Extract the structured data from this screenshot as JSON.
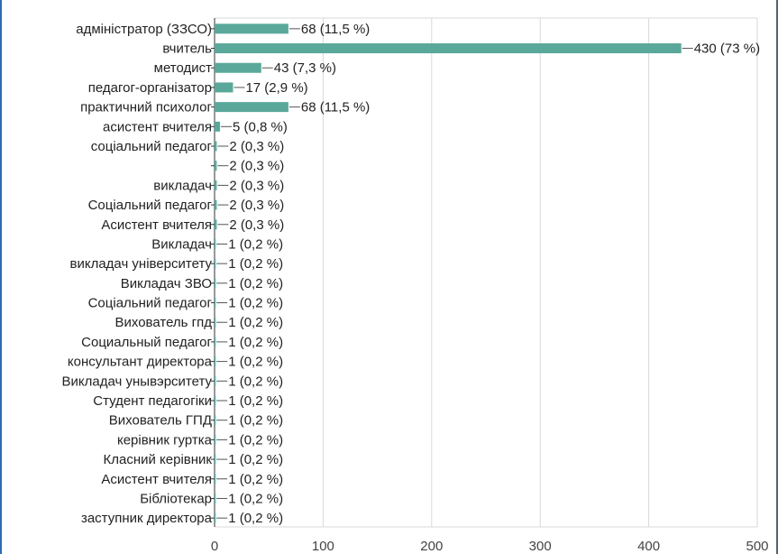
{
  "title": "",
  "chart_data": {
    "type": "bar",
    "orientation": "horizontal",
    "title": "",
    "xlabel": "",
    "ylabel": "",
    "xlim": [
      0,
      500
    ],
    "xticks": [
      0,
      100,
      200,
      300,
      400,
      500
    ],
    "grid": true,
    "bar_color": "#5aa89a",
    "categories": [
      "адміністратор (ЗЗСО)",
      "вчитель",
      "методист",
      "педагог-організатор",
      "практичний психолог",
      "асистент вчителя",
      "соціальний педагог",
      "",
      "викладач",
      "Соціальний педагог",
      "Асистент вчителя",
      "Викладач",
      "викладач університету",
      "Викладач ЗВО",
      "Соціальний педагог",
      "Вихователь гпд",
      "Социальный педагог",
      "консультант директора",
      "Викладач унывэрситету",
      "Студент педагогіки",
      "Вихователь ГПД",
      "керівник гуртка",
      "Класний керівник",
      "Асистент вчителя",
      "Бібліотекар",
      "заступник директора"
    ],
    "values": [
      68,
      430,
      43,
      17,
      68,
      5,
      2,
      2,
      2,
      2,
      2,
      1,
      1,
      1,
      1,
      1,
      1,
      1,
      1,
      1,
      1,
      1,
      1,
      1,
      1,
      1
    ],
    "value_labels": [
      "68 (11,5 %)",
      "430 (73 %)",
      "43 (7,3 %)",
      "17 (2,9 %)",
      "68 (11,5 %)",
      "5 (0,8 %)",
      "2 (0,3 %)",
      "2 (0,3 %)",
      "2 (0,3 %)",
      "2 (0,3 %)",
      "2 (0,3 %)",
      "1 (0,2 %)",
      "1 (0,2 %)",
      "1 (0,2 %)",
      "1 (0,2 %)",
      "1 (0,2 %)",
      "1 (0,2 %)",
      "1 (0,2 %)",
      "1 (0,2 %)",
      "1 (0,2 %)",
      "1 (0,2 %)",
      "1 (0,2 %)",
      "1 (0,2 %)",
      "1 (0,2 %)",
      "1 (0,2 %)",
      "1 (0,2 %)"
    ]
  }
}
